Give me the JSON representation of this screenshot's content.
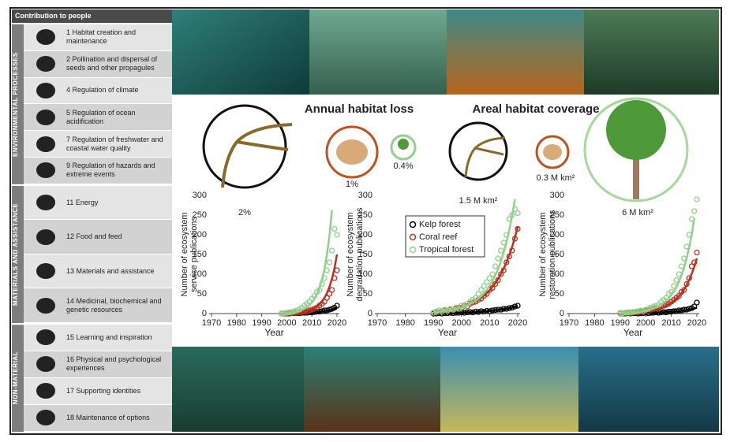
{
  "sidebar": {
    "header": "Contribution to people",
    "groups": [
      {
        "label": "ENVIRONMENTAL PROCESSES",
        "items": [
          "1 Habitat creation and maintenance",
          "2 Pollination and dispersal of seeds and other propagules",
          "4 Regulation of climate",
          "5 Regulation of ocean acidification",
          "7 Regulation of freshwater and coastal water quality",
          "9 Regulation of hazards and extreme events"
        ]
      },
      {
        "label": "MATERIALS AND ASSISTANCE",
        "items": [
          "11 Energy",
          "12 Food and feed",
          "13 Materials and assistance",
          "14 Medicinal, biochemical and genetic resources"
        ]
      },
      {
        "label": "NON-MATERIAL",
        "items": [
          "15 Learning and inspiration",
          "16 Physical and psychological experiences",
          "17 Supporting identities",
          "18 Maintenance of options"
        ]
      }
    ]
  },
  "habitat_loss": {
    "title": "Annual habitat loss",
    "labels": [
      "2%",
      "1%",
      "0.4%"
    ]
  },
  "habitat_coverage": {
    "title": "Areal habitat coverage",
    "labels": [
      "1.5 M km²",
      "0.3 M km²",
      "6 M km²"
    ]
  },
  "chart_data": [
    {
      "type": "scatter",
      "ylabel": [
        "Number of ecosystem",
        "service publications"
      ],
      "xlabel": "Year",
      "xlim": [
        1970,
        2020
      ],
      "xticks": [
        1970,
        1980,
        1990,
        2000,
        2010,
        2020
      ],
      "ylim": [
        0,
        300
      ],
      "yticks": [
        0,
        50,
        100,
        150,
        200,
        250,
        300
      ],
      "x": [
        1998,
        1999,
        2000,
        2001,
        2002,
        2003,
        2004,
        2005,
        2006,
        2007,
        2008,
        2009,
        2010,
        2011,
        2012,
        2013,
        2014,
        2015,
        2016,
        2017,
        2018,
        2019,
        2020
      ],
      "series": [
        {
          "color": "#000000",
          "values": [
            0,
            0,
            0,
            0,
            1,
            1,
            1,
            1,
            2,
            2,
            2,
            3,
            3,
            4,
            5,
            5,
            6,
            8,
            8,
            10,
            12,
            15,
            20
          ],
          "fit": [
            0,
            0,
            0,
            0,
            1,
            1,
            1,
            1,
            1,
            2,
            2,
            2,
            3,
            3,
            4,
            4,
            5,
            6,
            7,
            8,
            10,
            12,
            15
          ]
        },
        {
          "color": "#b8321e",
          "values": [
            0,
            0,
            0,
            1,
            1,
            2,
            2,
            3,
            4,
            5,
            6,
            8,
            10,
            12,
            15,
            20,
            25,
            30,
            40,
            50,
            60,
            90,
            110
          ],
          "fit": [
            0,
            0,
            1,
            1,
            1,
            2,
            2,
            3,
            4,
            5,
            6,
            8,
            11,
            14,
            18,
            24,
            31,
            40,
            52,
            68,
            88,
            115,
            150
          ]
        },
        {
          "color": "#8fd18a",
          "values": [
            0,
            1,
            2,
            3,
            4,
            6,
            8,
            10,
            15,
            20,
            25,
            30,
            38,
            45,
            55,
            60,
            75,
            90,
            110,
            130,
            160,
            215,
            200
          ],
          "fit": [
            0,
            1,
            1,
            2,
            3,
            4,
            5,
            7,
            9,
            12,
            16,
            21,
            28,
            37,
            49,
            65,
            86,
            113,
            150,
            198,
            262,
            null,
            null
          ]
        }
      ]
    },
    {
      "type": "scatter",
      "ylabel": [
        "Number of ecosystem",
        "degradation publications"
      ],
      "xlabel": "Year",
      "legend": true,
      "xlim": [
        1970,
        2020
      ],
      "xticks": [
        1970,
        1980,
        1990,
        2000,
        2010,
        2020
      ],
      "ylim": [
        0,
        300
      ],
      "yticks": [
        0,
        50,
        100,
        150,
        200,
        250,
        300
      ],
      "x": [
        1990,
        1991,
        1992,
        1993,
        1994,
        1995,
        1996,
        1997,
        1998,
        1999,
        2000,
        2001,
        2002,
        2003,
        2004,
        2005,
        2006,
        2007,
        2008,
        2009,
        2010,
        2011,
        2012,
        2013,
        2014,
        2015,
        2016,
        2017,
        2018,
        2019,
        2020
      ],
      "series": [
        {
          "name": "Kelp forest",
          "color": "#000000",
          "values": [
            0,
            0,
            1,
            0,
            1,
            1,
            2,
            1,
            2,
            2,
            3,
            2,
            3,
            4,
            3,
            5,
            4,
            6,
            5,
            7,
            6,
            8,
            9,
            10,
            10,
            12,
            12,
            14,
            15,
            18,
            20
          ],
          "fit": [
            0,
            0,
            0,
            1,
            1,
            1,
            1,
            1,
            2,
            2,
            2,
            2,
            3,
            3,
            3,
            4,
            4,
            5,
            5,
            6,
            7,
            7,
            8,
            9,
            10,
            11,
            12,
            14,
            15,
            17,
            19
          ]
        },
        {
          "name": "Coral reef",
          "color": "#b8321e",
          "values": [
            2,
            4,
            3,
            6,
            8,
            6,
            10,
            9,
            12,
            15,
            14,
            20,
            18,
            25,
            28,
            30,
            35,
            38,
            45,
            50,
            60,
            65,
            75,
            85,
            100,
            110,
            130,
            145,
            160,
            190,
            215
          ],
          "fit": [
            4,
            5,
            5,
            6,
            7,
            8,
            9,
            11,
            12,
            14,
            16,
            18,
            21,
            24,
            27,
            31,
            35,
            40,
            46,
            52,
            59,
            68,
            77,
            88,
            100,
            114,
            130,
            148,
            169,
            193,
            220
          ]
        },
        {
          "name": "Tropical forest",
          "color": "#8fd18a",
          "values": [
            2,
            5,
            8,
            6,
            10,
            8,
            12,
            10,
            15,
            12,
            20,
            18,
            25,
            30,
            35,
            40,
            50,
            60,
            70,
            80,
            90,
            100,
            120,
            140,
            160,
            180,
            200,
            240,
            250,
            265,
            255
          ],
          "fit": [
            3,
            4,
            4,
            5,
            6,
            7,
            8,
            9,
            11,
            13,
            15,
            17,
            20,
            24,
            28,
            32,
            38,
            44,
            52,
            60,
            71,
            83,
            97,
            113,
            132,
            155,
            181,
            212,
            248,
            290,
            null
          ]
        }
      ]
    },
    {
      "type": "scatter",
      "ylabel": [
        "Number of ecosystem",
        "restoration publications"
      ],
      "xlabel": "Year",
      "xlim": [
        1970,
        2020
      ],
      "xticks": [
        1970,
        1980,
        1990,
        2000,
        2010,
        2020
      ],
      "ylim": [
        0,
        300
      ],
      "yticks": [
        0,
        50,
        100,
        150,
        200,
        250,
        300
      ],
      "x": [
        1990,
        1991,
        1992,
        1993,
        1994,
        1995,
        1996,
        1997,
        1998,
        1999,
        2000,
        2001,
        2002,
        2003,
        2004,
        2005,
        2006,
        2007,
        2008,
        2009,
        2010,
        2011,
        2012,
        2013,
        2014,
        2015,
        2016,
        2017,
        2018,
        2019,
        2020
      ],
      "series": [
        {
          "color": "#000000",
          "values": [
            0,
            0,
            0,
            1,
            0,
            1,
            1,
            0,
            1,
            1,
            2,
            1,
            2,
            2,
            3,
            2,
            3,
            4,
            3,
            5,
            5,
            6,
            6,
            8,
            8,
            10,
            10,
            12,
            14,
            18,
            28
          ],
          "fit": [
            0,
            0,
            0,
            0,
            0,
            1,
            1,
            1,
            1,
            1,
            1,
            1,
            2,
            2,
            2,
            2,
            3,
            3,
            3,
            4,
            4,
            5,
            5,
            6,
            7,
            8,
            9,
            10,
            11,
            13,
            15
          ]
        },
        {
          "color": "#b8321e",
          "values": [
            1,
            0,
            2,
            1,
            3,
            2,
            4,
            3,
            5,
            4,
            8,
            6,
            10,
            12,
            14,
            12,
            18,
            20,
            22,
            25,
            30,
            35,
            40,
            45,
            55,
            60,
            75,
            90,
            120,
            130,
            155
          ],
          "fit": [
            1,
            1,
            1,
            2,
            2,
            2,
            3,
            3,
            4,
            4,
            5,
            6,
            7,
            8,
            10,
            12,
            14,
            16,
            19,
            23,
            27,
            32,
            37,
            44,
            52,
            61,
            72,
            85,
            101,
            119,
            140
          ]
        },
        {
          "color": "#8fd18a",
          "values": [
            0,
            1,
            2,
            3,
            2,
            4,
            5,
            6,
            8,
            7,
            10,
            12,
            15,
            18,
            20,
            22,
            30,
            35,
            40,
            50,
            55,
            70,
            85,
            100,
            120,
            140,
            170,
            200,
            240,
            260,
            290
          ],
          "fit": [
            1,
            2,
            2,
            2,
            3,
            3,
            4,
            4,
            5,
            6,
            8,
            9,
            11,
            13,
            16,
            19,
            23,
            27,
            32,
            39,
            47,
            56,
            67,
            81,
            97,
            117,
            140,
            168,
            201,
            242,
            null
          ]
        }
      ]
    }
  ]
}
